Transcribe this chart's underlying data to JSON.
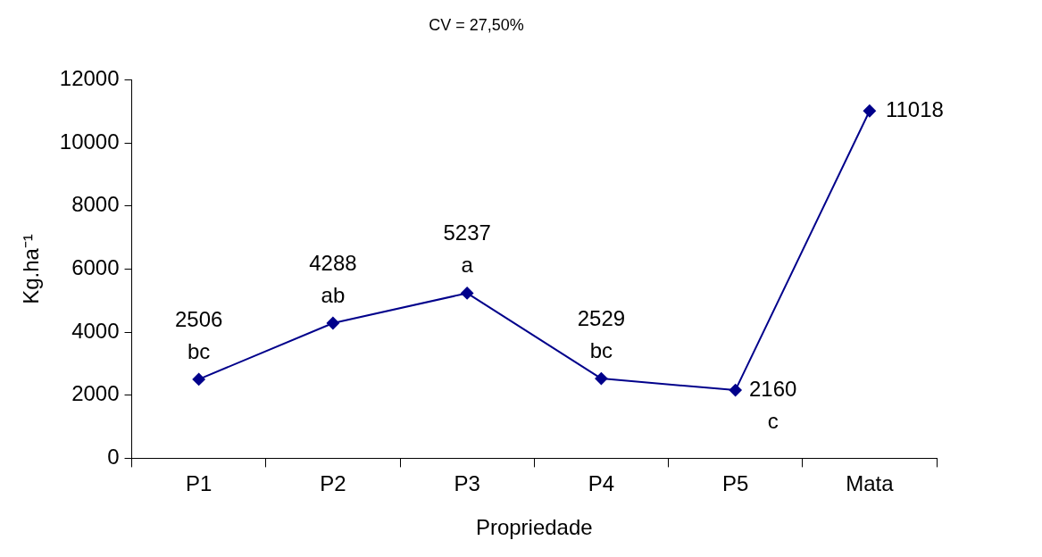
{
  "chart_data": {
    "type": "line",
    "title": "CV = 27,50%",
    "xlabel": "Propriedade",
    "ylabel": "Kg.ha⁻¹",
    "categories": [
      "P1",
      "P2",
      "P3",
      "P4",
      "P5",
      "Mata"
    ],
    "series": [
      {
        "color": "#00008b",
        "values": [
          2506,
          4288,
          5237,
          2529,
          2160,
          11018
        ]
      }
    ],
    "ylim": [
      0,
      12000
    ],
    "yticks": [
      0,
      2000,
      4000,
      6000,
      8000,
      10000,
      12000
    ],
    "grid": false,
    "legend": false,
    "marker": "diamond",
    "line_style": "solid",
    "data_labels": true,
    "annotations": [
      {
        "text": "bc",
        "x": "P1",
        "y": 2506
      },
      {
        "text": "ab",
        "x": "P2",
        "y": 4288
      },
      {
        "text": "a",
        "x": "P3",
        "y": 5237
      },
      {
        "text": "bc",
        "x": "P4",
        "y": 2529
      },
      {
        "text": "c",
        "x": "P5",
        "y": 2160
      }
    ]
  }
}
